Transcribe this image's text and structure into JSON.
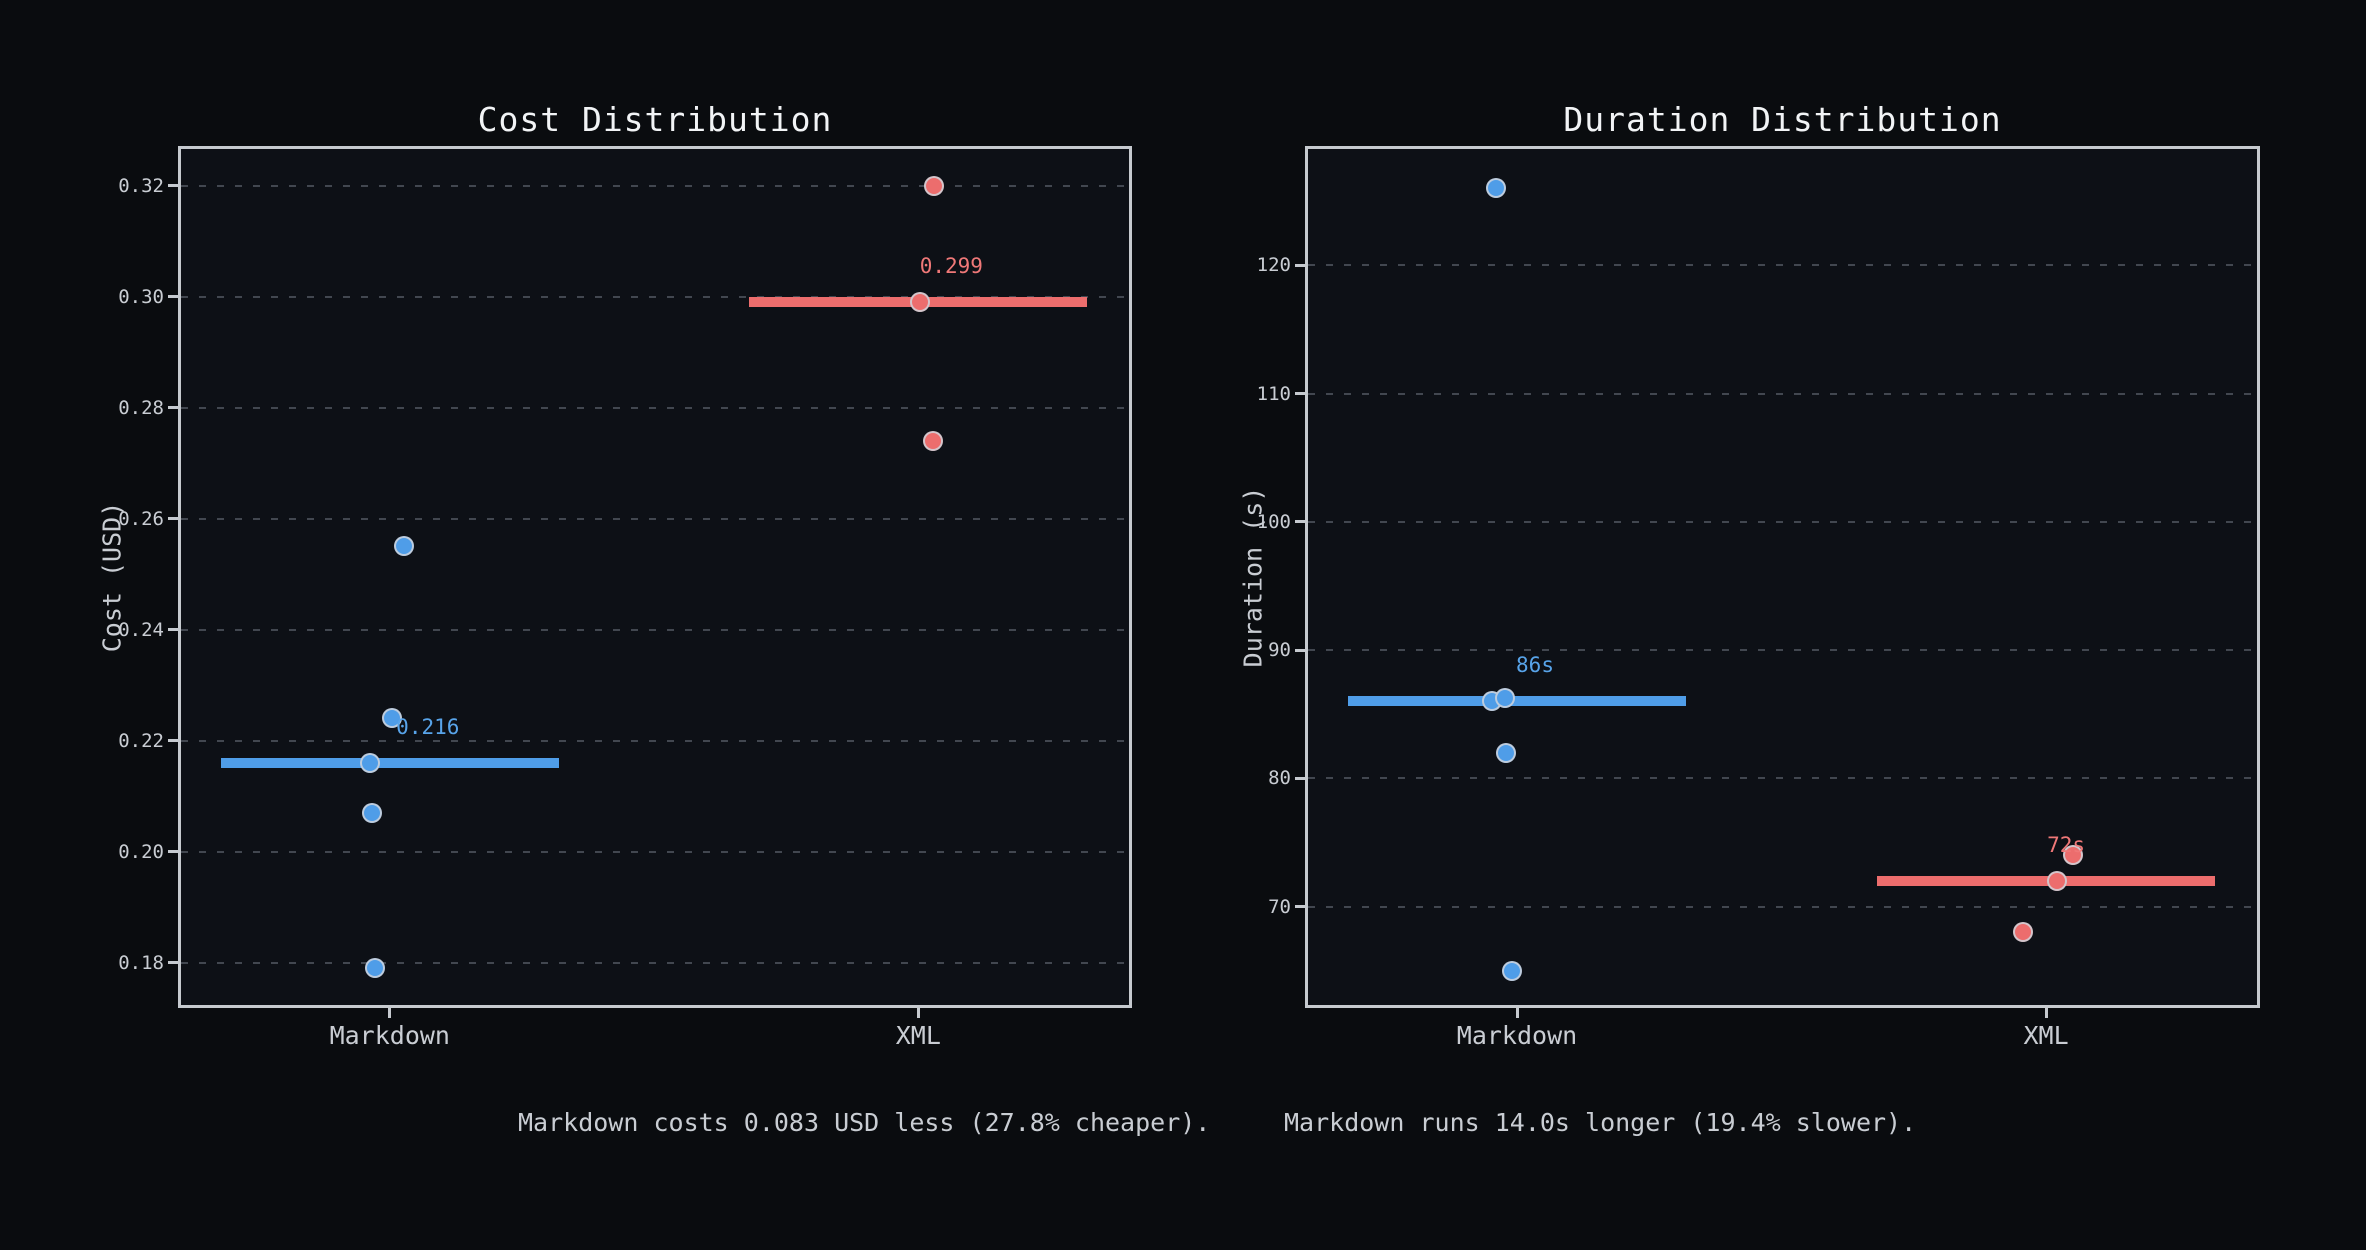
{
  "figure": {
    "bg": "#0a0c0f",
    "plot_bg": "#0d1016",
    "spine_color": "#c6cacf",
    "grid_color": "#424750",
    "text_color": "#c9cdd3",
    "title_color": "#f2f4f6",
    "blue": "#4f9de8",
    "red": "#ec6d6d"
  },
  "captions": {
    "cost": "Markdown costs 0.083 USD less (27.8% cheaper).",
    "duration": "Markdown runs 14.0s longer (19.4% slower)."
  },
  "chart_data": [
    {
      "type": "scatter",
      "title": "Cost Distribution",
      "ylabel": "Cost (USD)",
      "xlabel": "",
      "ylim": [
        0.1718,
        0.3272
      ],
      "grid": true,
      "legend": "none",
      "ytick_values": [
        0.18,
        0.2,
        0.22,
        0.24,
        0.26,
        0.28,
        0.3,
        0.32
      ],
      "ytick_labels": [
        "0.18",
        "0.20",
        "0.22",
        "0.24",
        "0.26",
        "0.28",
        "0.30",
        "0.32"
      ],
      "categories": [
        "Markdown",
        "XML"
      ],
      "series": [
        {
          "name": "Markdown",
          "color": "#4f9de8",
          "label_color": "#58a4ea",
          "median": 0.216,
          "median_label": "0.216",
          "median_label_dx": 38,
          "points": [
            {
              "v": 0.255,
              "dx": 14
            },
            {
              "v": 0.224,
              "dx": 2
            },
            {
              "v": 0.216,
              "dx": -20
            },
            {
              "v": 0.207,
              "dx": -18
            },
            {
              "v": 0.179,
              "dx": -15
            }
          ]
        },
        {
          "name": "XML",
          "color": "#ec6d6d",
          "label_color": "#ef7878",
          "median": 0.299,
          "median_label": "0.299",
          "median_label_dx": 33,
          "points": [
            {
              "v": 0.32,
              "dx": 16
            },
            {
              "v": 0.299,
              "dx": 2
            },
            {
              "v": 0.274,
              "dx": 15
            }
          ]
        }
      ]
    },
    {
      "type": "scatter",
      "title": "Duration Distribution",
      "ylabel": "Duration (s)",
      "xlabel": "",
      "ylim": [
        62.1,
        129.3
      ],
      "grid": true,
      "legend": "none",
      "ytick_values": [
        70,
        80,
        90,
        100,
        110,
        120
      ],
      "ytick_labels": [
        "70",
        "80",
        "90",
        "100",
        "110",
        "120"
      ],
      "categories": [
        "Markdown",
        "XML"
      ],
      "series": [
        {
          "name": "Markdown",
          "color": "#4f9de8",
          "label_color": "#58a4ea",
          "median": 86,
          "median_label": "86s",
          "median_label_dx": 18,
          "points": [
            {
              "v": 126,
              "dx": -21
            },
            {
              "v": 86,
              "dx": -25
            },
            {
              "v": 86.3,
              "dx": -12
            },
            {
              "v": 82,
              "dx": -11
            },
            {
              "v": 65,
              "dx": -5
            }
          ]
        },
        {
          "name": "XML",
          "color": "#ec6d6d",
          "label_color": "#ef7878",
          "median": 72,
          "median_label": "72s",
          "median_label_dx": 20,
          "points": [
            {
              "v": 74,
              "dx": 27
            },
            {
              "v": 72,
              "dx": 11
            },
            {
              "v": 68,
              "dx": -23
            }
          ]
        }
      ]
    }
  ]
}
